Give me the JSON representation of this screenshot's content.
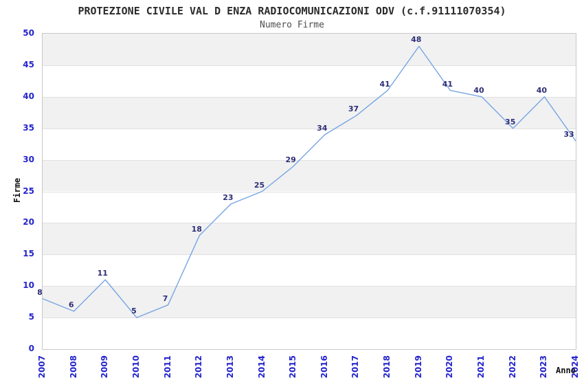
{
  "chart_data": {
    "type": "line",
    "title": "PROTEZIONE CIVILE VAL D ENZA RADIOCOMUNICAZIONI ODV (c.f.91111070354)",
    "subtitle": "Numero Firme",
    "xlabel": "Anno",
    "ylabel": "Firme",
    "categories": [
      "2007",
      "2008",
      "2009",
      "2010",
      "2011",
      "2012",
      "2013",
      "2014",
      "2015",
      "2016",
      "2017",
      "2018",
      "2019",
      "2020",
      "2021",
      "2022",
      "2023",
      "2024"
    ],
    "series": [
      {
        "name": "Numero Firme",
        "values": [
          8,
          6,
          11,
          5,
          7,
          18,
          23,
          25,
          29,
          34,
          37,
          41,
          48,
          41,
          40,
          35,
          40,
          33
        ]
      }
    ],
    "point_labels_shown": true,
    "ylim": [
      0,
      50
    ],
    "ytick_step": 5,
    "grid": "horizontal gridlines every 5 with alternating shaded bands",
    "legend_position": "none",
    "colors": {
      "line": "#76a5e3",
      "band_fill": "#f1f1f1",
      "gridline": "#e0e0e0",
      "plot_border": "#c8c8c8",
      "axis_tick_text": "#2424cc",
      "point_label_text": "#2e2e78",
      "title_text": "#2b2b2b",
      "subtitle_text": "#4d4d4d",
      "axis_title_text": "#111111"
    }
  }
}
